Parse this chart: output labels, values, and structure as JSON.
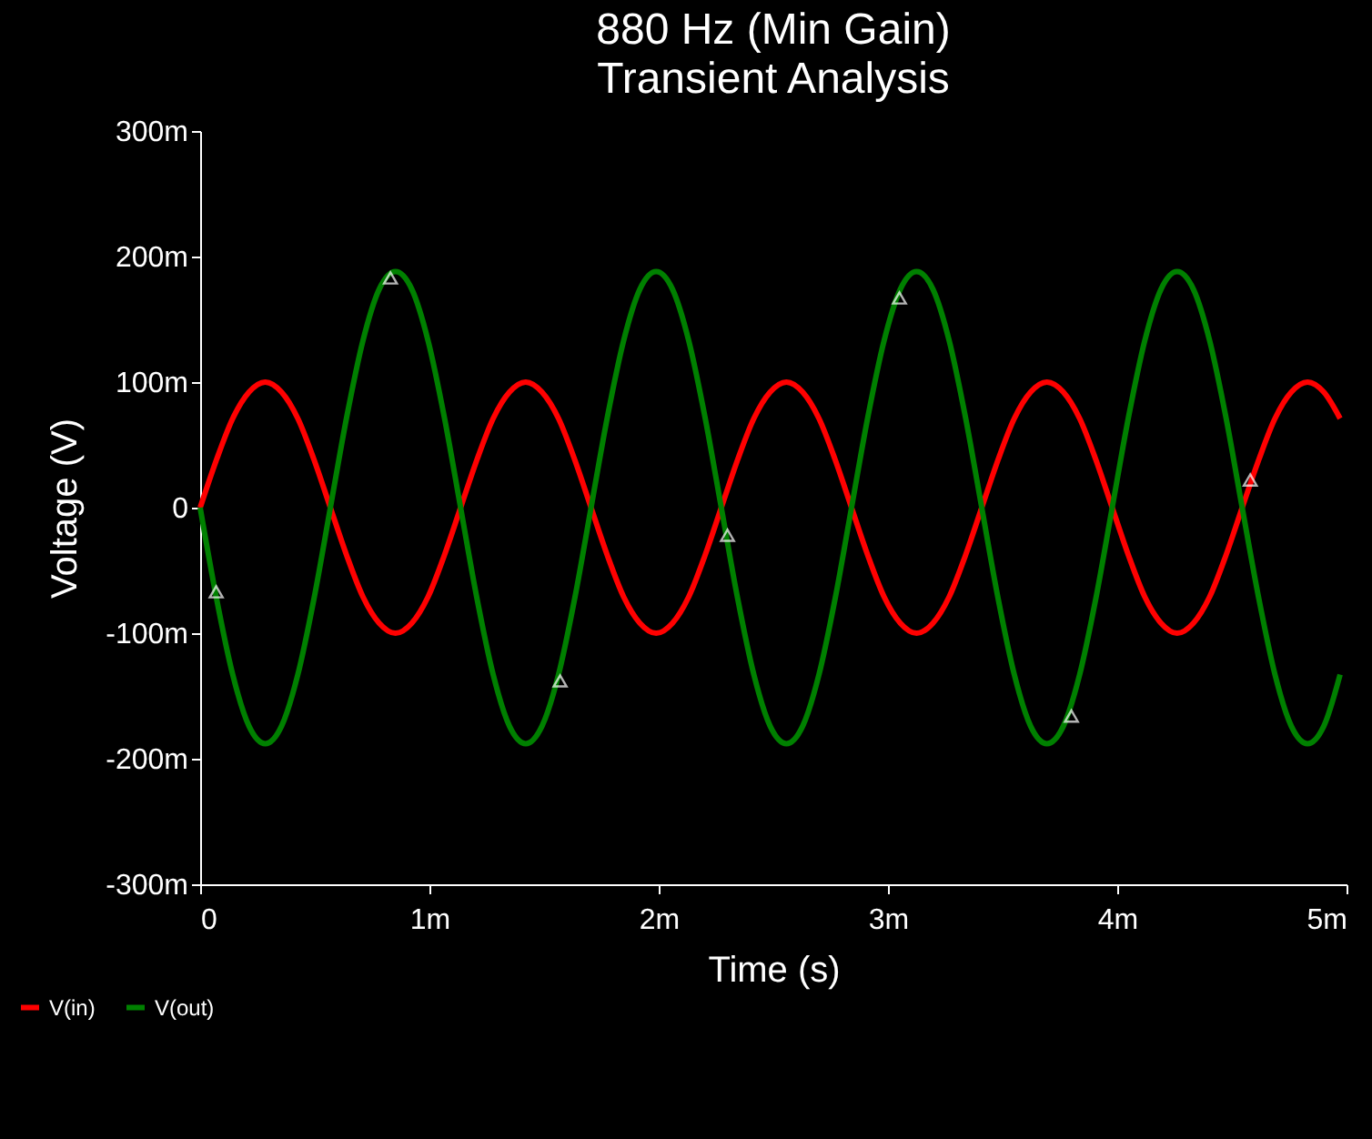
{
  "chart_data": {
    "type": "line",
    "title": "880 Hz (Min Gain)",
    "subtitle": "Transient Analysis",
    "xlabel": "Time (s)",
    "ylabel": "Voltage (V)",
    "x": [
      0,
      0.071,
      0.142,
      0.213,
      0.284,
      0.355,
      0.426,
      0.497,
      0.568,
      0.639,
      0.71,
      0.781,
      0.852,
      0.923,
      0.994,
      1.065,
      1.136,
      1.207,
      1.278,
      1.349,
      1.42,
      1.491,
      1.563,
      1.634,
      1.705,
      1.776,
      1.847,
      1.918,
      1.989,
      2.06,
      2.131,
      2.202,
      2.273,
      2.344,
      2.415,
      2.486,
      2.557,
      2.628,
      2.699,
      2.77,
      2.841,
      2.912,
      2.983,
      3.054,
      3.125,
      3.196,
      3.267,
      3.338,
      3.409,
      3.48,
      3.551,
      3.622,
      3.693,
      3.765,
      3.836,
      3.907,
      3.978,
      4.049,
      4.12,
      4.191,
      4.261,
      4.332,
      4.403,
      4.474,
      4.545,
      4.617,
      4.688,
      4.759,
      4.83,
      4.901,
      4.972
    ],
    "series": [
      {
        "name": "V(in)",
        "color": "#ff0000",
        "values": [
          0,
          38,
          71,
          92,
          100,
          92,
          71,
          38,
          0,
          -38,
          -71,
          -92,
          -100,
          -92,
          -71,
          -38,
          0,
          38,
          71,
          92,
          100,
          92,
          71,
          38,
          0,
          -38,
          -71,
          -92,
          -100,
          -92,
          -71,
          -38,
          0,
          38,
          71,
          92,
          100,
          92,
          71,
          38,
          0,
          -38,
          -71,
          -92,
          -100,
          -92,
          -71,
          -38,
          0,
          38,
          71,
          92,
          100,
          92,
          71,
          38,
          0,
          -38,
          -71,
          -92,
          -100,
          -92,
          -71,
          -38,
          0,
          38,
          71,
          92,
          100,
          92,
          71
        ]
      },
      {
        "name": "V(out)",
        "color": "#008000",
        "values": [
          0,
          -72,
          -133,
          -174,
          -188,
          -174,
          -133,
          -72,
          0,
          72,
          133,
          174,
          188,
          174,
          133,
          72,
          0,
          -72,
          -133,
          -174,
          -188,
          -174,
          -133,
          -72,
          0,
          72,
          133,
          174,
          188,
          174,
          133,
          72,
          0,
          -72,
          -133,
          -174,
          -188,
          -174,
          -133,
          -72,
          0,
          72,
          133,
          174,
          188,
          174,
          133,
          72,
          0,
          -72,
          -133,
          -174,
          -188,
          -174,
          -133,
          -72,
          0,
          72,
          133,
          174,
          188,
          174,
          133,
          72,
          0,
          -72,
          -133,
          -174,
          -188,
          -174,
          -133
        ]
      },
      {
        "type": "scatter",
        "marker": "triangle",
        "color": "#ffffff",
        "x": [
          0.07,
          0.83,
          1.57,
          2.3,
          3.05,
          3.8,
          4.58
        ],
        "values": [
          -67,
          183,
          -138,
          -22,
          167,
          -166,
          22
        ]
      }
    ],
    "xlim": [
      0,
      5
    ],
    "xticks": [
      0,
      {
        "value": 1,
        "label": "1m"
      },
      {
        "value": 2,
        "label": "2m"
      },
      {
        "value": 3,
        "label": "3m"
      },
      {
        "value": 4,
        "label": "4m"
      },
      {
        "value": 5,
        "label": "5m"
      }
    ],
    "ylim": [
      -300,
      300
    ],
    "yticks": [
      {
        "value": -300,
        "label": "-300m"
      },
      {
        "value": -200,
        "label": "-200m"
      },
      {
        "value": -100,
        "label": "-100m"
      },
      0,
      {
        "value": 100,
        "label": "100m"
      },
      {
        "value": 200,
        "label": "200m"
      },
      {
        "value": 300,
        "label": "300m"
      }
    ],
    "grid": false,
    "legend": "bottom left",
    "line_style": "solid"
  }
}
